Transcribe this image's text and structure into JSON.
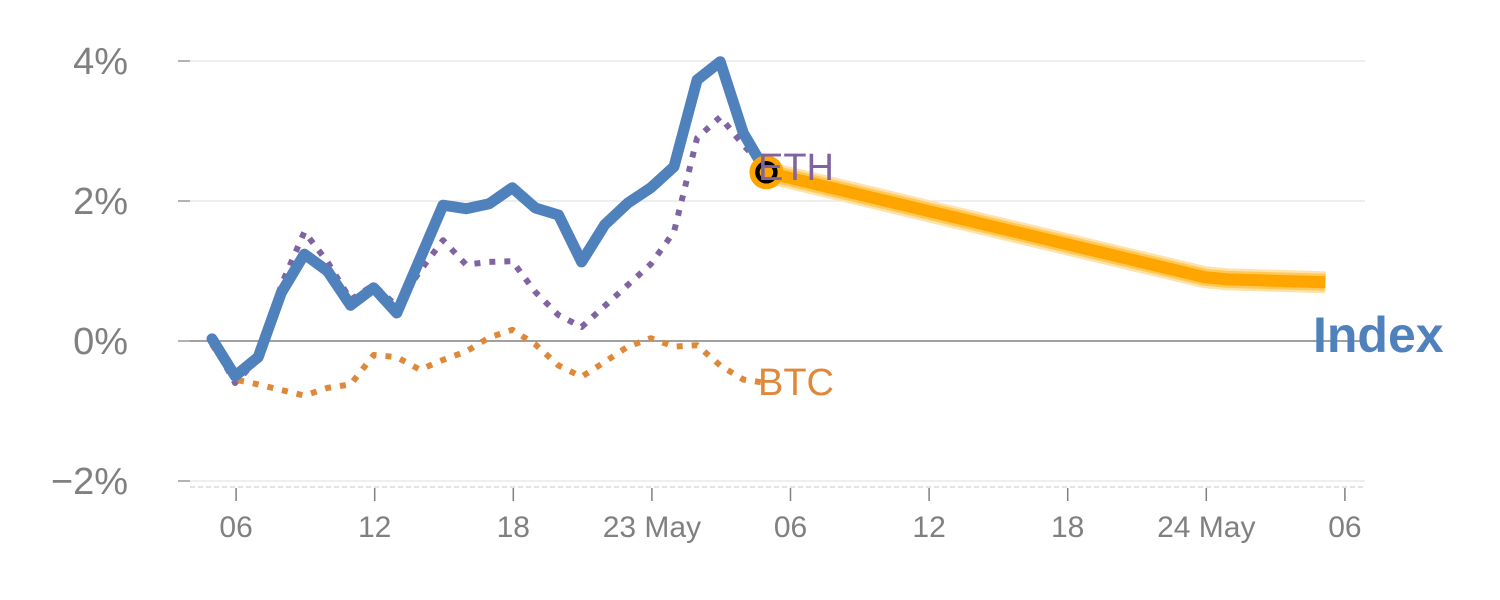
{
  "chart_data": {
    "type": "line",
    "title": "",
    "xlabel": "",
    "ylabel": "",
    "x_unit": "hours since 22 May 05:00",
    "xlim": [
      -1,
      49.3
    ],
    "ylim": [
      -2.1,
      4.3
    ],
    "grid": true,
    "y_ticks": [
      {
        "value": 4,
        "label": "4%"
      },
      {
        "value": 2,
        "label": "2%"
      },
      {
        "value": 0,
        "label": "0%"
      },
      {
        "value": -2,
        "label": "−2%"
      }
    ],
    "x_ticks": [
      {
        "value": 1,
        "label": "06"
      },
      {
        "value": 7,
        "label": "12"
      },
      {
        "value": 13,
        "label": "18"
      },
      {
        "value": 19,
        "label": "23 May"
      },
      {
        "value": 25,
        "label": "06"
      },
      {
        "value": 31,
        "label": "12"
      },
      {
        "value": 37,
        "label": "18"
      },
      {
        "value": 43,
        "label": "24 May"
      },
      {
        "value": 49,
        "label": "06"
      }
    ],
    "series": [
      {
        "name": "ETH",
        "label": "ETH",
        "color": "#8064a2",
        "style": "dotted",
        "x": [
          0,
          1,
          2,
          3,
          4,
          5,
          6,
          7,
          8,
          9,
          10,
          11,
          12,
          13,
          14,
          15,
          16,
          17,
          18,
          19,
          20,
          21,
          22,
          23,
          24
        ],
        "values": [
          0.0,
          -0.6,
          -0.25,
          0.8,
          1.56,
          1.13,
          0.59,
          0.8,
          0.5,
          1.0,
          1.44,
          1.09,
          1.13,
          1.14,
          0.7,
          0.37,
          0.2,
          0.5,
          0.8,
          1.1,
          1.56,
          2.9,
          3.2,
          2.8,
          2.45
        ]
      },
      {
        "name": "BTC",
        "label": "BTC",
        "color": "#e0883a",
        "style": "dotted",
        "x": [
          0,
          1,
          2,
          3,
          4,
          5,
          6,
          7,
          8,
          9,
          10,
          11,
          12,
          13,
          14,
          15,
          16,
          17,
          18,
          19,
          20,
          21,
          22,
          23,
          24
        ],
        "values": [
          -0.05,
          -0.55,
          -0.62,
          -0.7,
          -0.78,
          -0.67,
          -0.62,
          -0.2,
          -0.23,
          -0.41,
          -0.27,
          -0.15,
          0.05,
          0.16,
          -0.05,
          -0.35,
          -0.51,
          -0.3,
          -0.08,
          0.04,
          -0.08,
          -0.06,
          -0.35,
          -0.55,
          -0.6
        ]
      },
      {
        "name": "Index",
        "label": "Index",
        "color": "#4f81bd",
        "style": "solid",
        "x": [
          0,
          1,
          2,
          3,
          4,
          5,
          6,
          7,
          8,
          9,
          10,
          11,
          12,
          13,
          14,
          15,
          16,
          17,
          18,
          19,
          20,
          21,
          22,
          23,
          24
        ],
        "values": [
          0.03,
          -0.5,
          -0.23,
          0.69,
          1.24,
          1.0,
          0.51,
          0.76,
          0.4,
          1.17,
          1.94,
          1.89,
          1.96,
          2.19,
          1.9,
          1.8,
          1.13,
          1.66,
          1.97,
          2.19,
          2.49,
          3.73,
          3.99,
          2.97,
          2.41
        ]
      },
      {
        "name": "Index forecast",
        "color": "#ffa500",
        "style": "highlight",
        "x": [
          24,
          43,
          44,
          48.2
        ],
        "values": [
          2.41,
          0.91,
          0.88,
          0.84
        ]
      }
    ],
    "marker": {
      "x": 24,
      "value": 2.41
    }
  }
}
